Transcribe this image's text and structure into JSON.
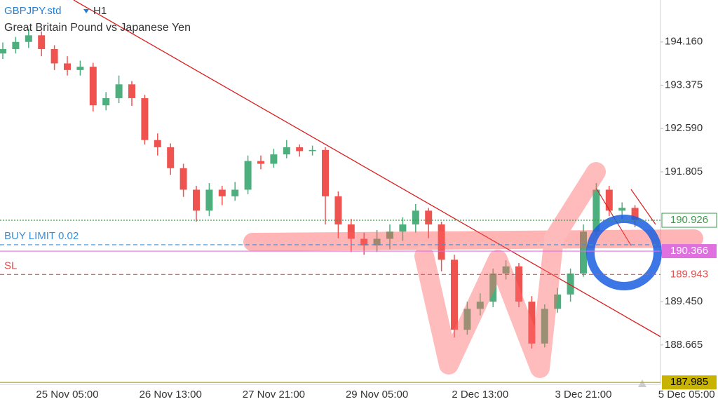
{
  "header": {
    "symbol": "GBPJPY.std",
    "timeframe": "H1",
    "description": "Great Britain Pound vs Japanese Yen"
  },
  "chart_data": {
    "type": "candlestick",
    "up_color": "#4caf7d",
    "down_color": "#ef5350",
    "categories": [
      null,
      null,
      null,
      null,
      null,
      "25 Nov 05:00",
      null,
      null,
      null,
      null,
      null,
      null,
      null,
      "26 Nov 13:00",
      null,
      null,
      null,
      null,
      null,
      null,
      null,
      "27 Nov 21:00",
      null,
      null,
      null,
      null,
      null,
      null,
      null,
      "29 Nov 05:00",
      null,
      null,
      null,
      null,
      null,
      null,
      null,
      "2 Dec 13:00",
      null,
      null,
      null,
      null,
      null,
      null,
      null,
      "3 Dec 21:00",
      null,
      null,
      null,
      null,
      null,
      null,
      null,
      "5 Dec 05:00"
    ],
    "open": [
      193.95,
      194.03,
      194.16,
      194.28,
      194.03,
      193.77,
      193.65,
      193.71,
      193.01,
      193.14,
      193.39,
      193.14,
      192.38,
      192.25,
      191.87,
      191.48,
      191.1,
      191.48,
      191.36,
      191.48,
      192.0,
      191.95,
      192.12,
      192.25,
      192.18,
      192.2,
      191.36,
      190.85,
      190.59,
      190.47,
      190.59,
      190.72,
      190.85,
      191.1,
      190.85,
      190.21,
      188.94,
      189.32,
      189.45,
      189.96,
      190.09,
      189.45,
      188.69,
      189.32,
      189.58,
      189.96,
      190.72,
      191.48,
      191.1,
      191.15,
      null,
      null,
      null,
      null
    ],
    "high": [
      194.15,
      194.25,
      194.4,
      194.35,
      194.1,
      193.9,
      193.82,
      193.78,
      193.25,
      193.55,
      193.45,
      193.2,
      192.5,
      192.32,
      191.95,
      191.55,
      191.6,
      191.55,
      191.62,
      192.1,
      192.1,
      192.22,
      192.38,
      192.3,
      192.28,
      192.25,
      191.45,
      190.95,
      190.7,
      190.75,
      190.85,
      190.98,
      191.22,
      191.15,
      190.9,
      190.3,
      189.45,
      189.6,
      190.05,
      190.2,
      190.15,
      189.55,
      189.4,
      189.7,
      190.05,
      190.85,
      191.6,
      191.55,
      191.25,
      191.2,
      null,
      null,
      null,
      null
    ],
    "low": [
      193.85,
      193.95,
      194.05,
      193.9,
      193.65,
      193.55,
      193.55,
      192.9,
      192.92,
      193.05,
      193.0,
      192.3,
      192.1,
      191.75,
      191.35,
      190.9,
      191.0,
      191.2,
      191.28,
      191.4,
      191.85,
      191.88,
      192.05,
      192.08,
      192.1,
      190.85,
      190.6,
      190.35,
      190.3,
      190.35,
      190.4,
      190.55,
      190.7,
      190.6,
      190.0,
      188.8,
      188.85,
      189.2,
      189.35,
      189.85,
      189.35,
      188.6,
      188.62,
      189.25,
      189.45,
      189.9,
      190.65,
      191.0,
      190.95,
      190.8,
      null,
      null,
      null,
      null
    ],
    "close": [
      194.03,
      194.16,
      194.28,
      194.03,
      193.77,
      193.65,
      193.71,
      193.01,
      193.14,
      193.39,
      193.14,
      192.38,
      192.25,
      191.87,
      191.48,
      191.1,
      191.48,
      191.36,
      191.48,
      192.0,
      191.95,
      192.12,
      192.25,
      192.18,
      192.2,
      191.36,
      190.85,
      190.59,
      190.47,
      190.59,
      190.72,
      190.85,
      191.1,
      190.85,
      190.21,
      188.94,
      189.32,
      189.45,
      189.96,
      190.09,
      189.45,
      188.69,
      189.32,
      189.58,
      189.96,
      190.72,
      191.48,
      191.1,
      191.15,
      190.93,
      null,
      null,
      null,
      null
    ],
    "ylim": [
      187.95,
      194.92
    ],
    "yticks": [
      {
        "value": 194.16,
        "label": "194.160"
      },
      193.375,
      {
        "value": 192.59,
        "label": "192.590"
      },
      191.805,
      {
        "value": 189.45,
        "label": "189.450"
      },
      188.665
    ],
    "levels": [
      {
        "name": "BUY LIMIT 0.02",
        "value": 190.482,
        "color": "#3b8fd8",
        "style": "dashed",
        "tag": "none"
      },
      {
        "name": "SL",
        "value": 189.943,
        "color": "#e05050",
        "style": "dashed",
        "tag": "text"
      },
      {
        "value": 190.926,
        "color": "#3a9a4a",
        "style": "dotted",
        "tag": "outline"
      },
      {
        "value": 190.366,
        "color": "#e070e0",
        "style": "solid",
        "tag": "filled"
      },
      {
        "value": 187.985,
        "color": "#c8b400",
        "style": "solid",
        "tag": "filled"
      }
    ]
  }
}
